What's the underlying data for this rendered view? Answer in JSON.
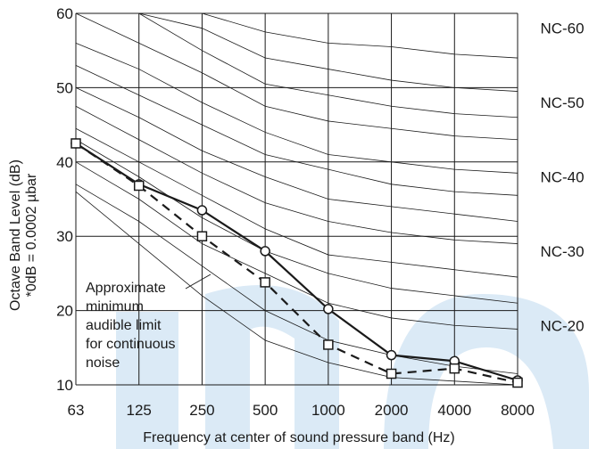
{
  "chart_data": {
    "type": "line",
    "xlabel": "Frequency at center of sound pressure band (Hz)",
    "ylabel_line1": "Octave Band Level (dB)",
    "ylabel_line2": "*0dB = 0.0002 µbar",
    "categories": [
      "63",
      "125",
      "250",
      "500",
      "1000",
      "2000",
      "4000",
      "8000"
    ],
    "y_ticks": [
      10,
      20,
      30,
      40,
      50,
      60
    ],
    "ylim": [
      10,
      60
    ],
    "grid": true,
    "nc_labels": [
      {
        "label": "NC-60",
        "y": 58
      },
      {
        "label": "NC-50",
        "y": 48
      },
      {
        "label": "NC-40",
        "y": 38
      },
      {
        "label": "NC-30",
        "y": 28
      },
      {
        "label": "NC-20",
        "y": 18
      }
    ],
    "nc_curves": [
      [
        60,
        60,
        60,
        60,
        60,
        60,
        60,
        60
      ],
      [
        60,
        60,
        60,
        57.5,
        56,
        55.5,
        54.5,
        54
      ],
      [
        60,
        60,
        58,
        54,
        52.5,
        51,
        50,
        49.5
      ],
      [
        60,
        60,
        55,
        50.5,
        49,
        47.5,
        46.5,
        46
      ],
      [
        60,
        56,
        52,
        47.5,
        45.5,
        44.5,
        43.5,
        43
      ],
      [
        56,
        52.5,
        48,
        44,
        41,
        40,
        39,
        38.5
      ],
      [
        53,
        49,
        45,
        41,
        39,
        37,
        36,
        35.5
      ],
      [
        50,
        46,
        41.5,
        38,
        35,
        34,
        33,
        32
      ],
      [
        47.5,
        43,
        38.5,
        34.5,
        32,
        30.5,
        29.5,
        29
      ],
      [
        44.5,
        40,
        35.5,
        31,
        27.5,
        26.5,
        25.5,
        24.5
      ],
      [
        43,
        38,
        32.5,
        28,
        25,
        23,
        22,
        21
      ],
      [
        40,
        35,
        29,
        25,
        21,
        19,
        18,
        17.5
      ],
      [
        37,
        32,
        26,
        20,
        16,
        14,
        12.5,
        11.5
      ],
      [
        36,
        29,
        22,
        16,
        13,
        11,
        10.5,
        10
      ]
    ],
    "series": [
      {
        "values": [
          42.5,
          37,
          33.5,
          28,
          20.2,
          14,
          13.2,
          10.6
        ],
        "marker": "circle",
        "style": "solid"
      },
      {
        "values": [
          42.5,
          36.8,
          30,
          23.8,
          15.4,
          11.5,
          12.2,
          10.3
        ],
        "marker": "square",
        "style": "dashed"
      }
    ],
    "annotation": [
      "Approximate",
      "minimum",
      "audible limit",
      "for continuous",
      "noise"
    ],
    "colors": {
      "grid": "#1a1a1a",
      "series": "#1a1a1a",
      "watermark": "#dbeaf6"
    }
  }
}
